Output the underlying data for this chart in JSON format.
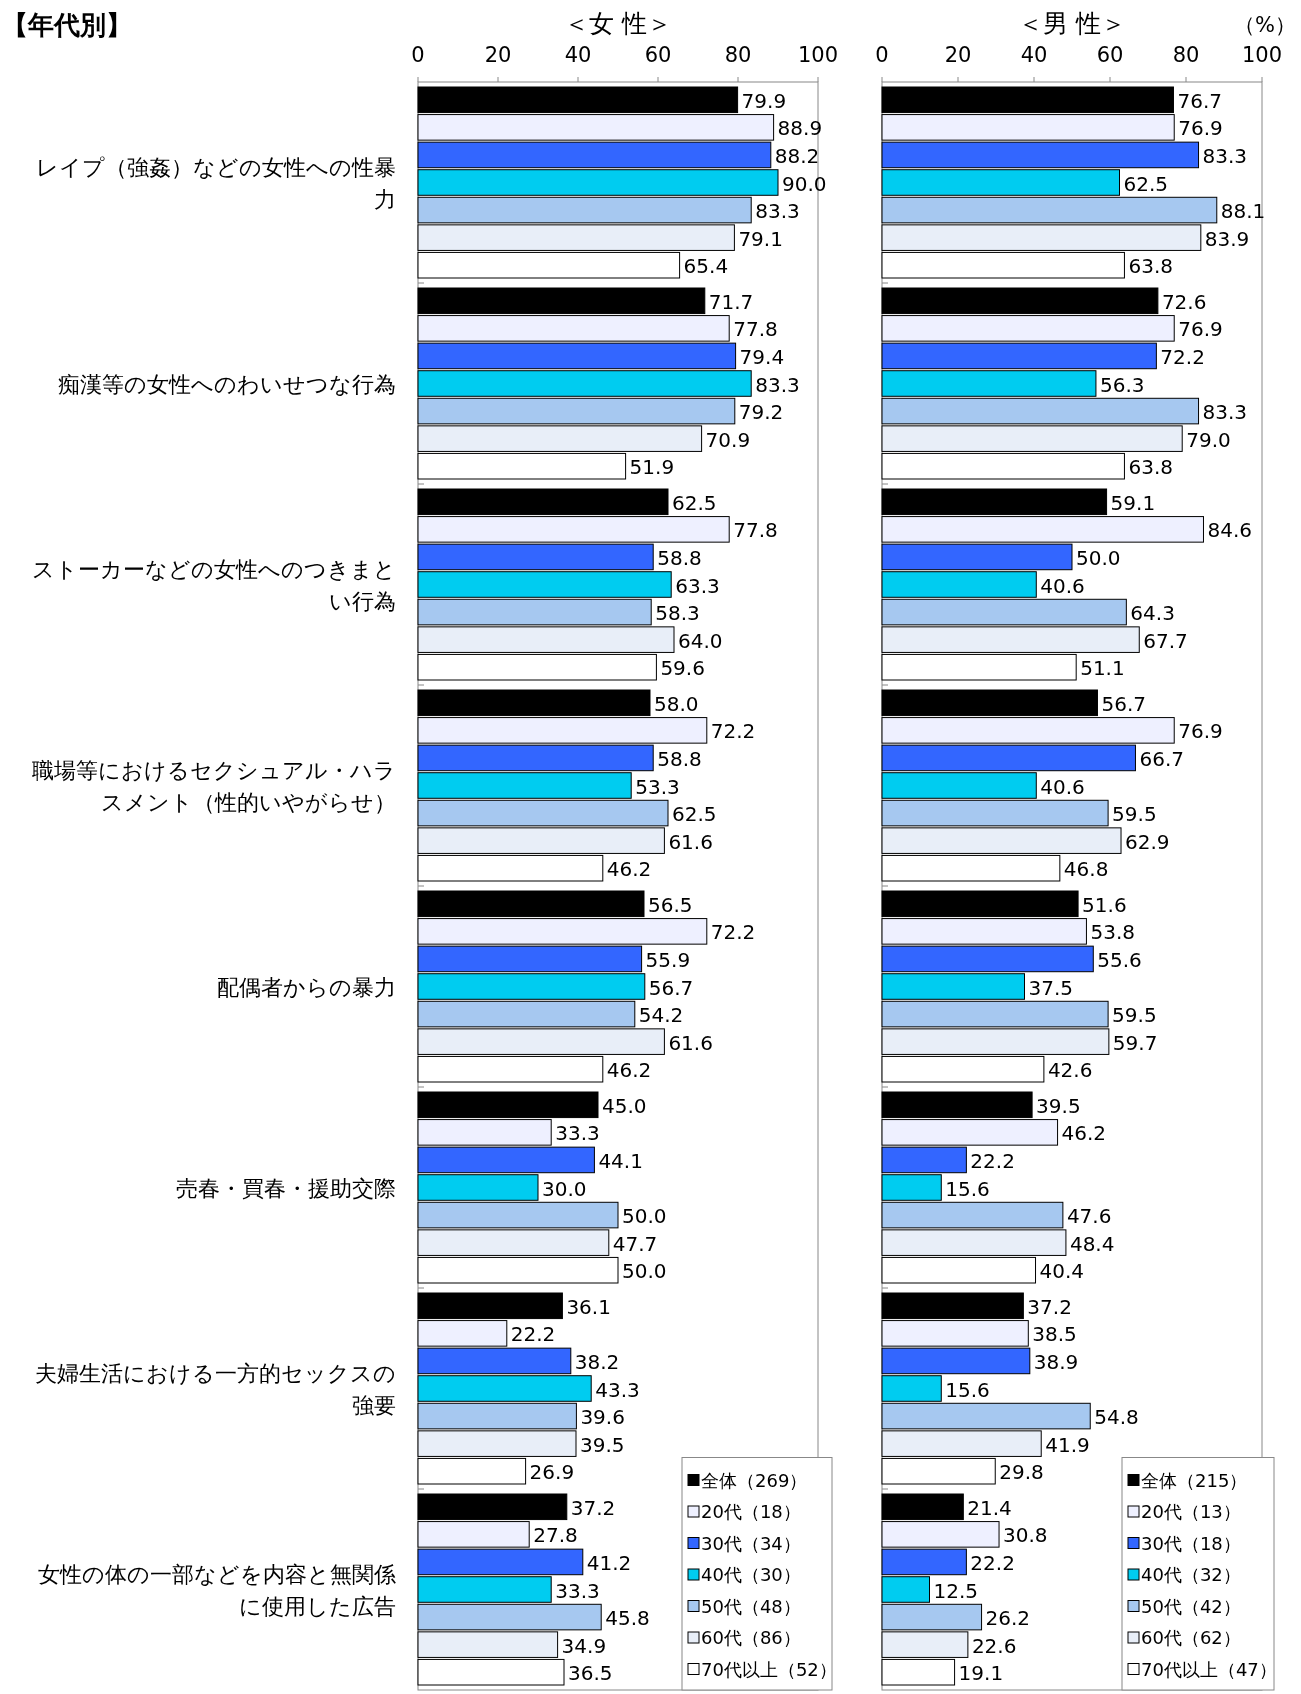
{
  "chart_data": [
    {
      "type": "bar",
      "orientation": "horizontal",
      "title": "【年代別】",
      "subtitle": "＜女 性＞",
      "xlim": [
        0,
        100
      ],
      "xticks": [
        0,
        20,
        40,
        60,
        80,
        100
      ],
      "legend": "bottom right",
      "grid": false,
      "categories": [
        "レイプ（強姦）などの女性への性暴力",
        "痴漢等の女性へのわいせつな行為",
        "ストーカーなどの女性へのつきまとい行為",
        "職場等におけるセクシュアル・ハラスメント（性的いやがらせ）",
        "配偶者からの暴力",
        "売春・買春・援助交際",
        "夫婦生活における一方的セックスの強要",
        "女性の体の一部などを内容と無関係に使用した広告"
      ],
      "series": [
        {
          "name": "全体（269）",
          "color": "#000000",
          "values": [
            79.9,
            71.7,
            62.5,
            58.0,
            56.5,
            45.0,
            36.1,
            37.2
          ],
          "value_labels": [
            "79.9",
            "71.7",
            "62.5",
            "58.0",
            "56.5",
            "45.0",
            "36.1",
            "37.2"
          ]
        },
        {
          "name": "20代（18）",
          "color": "#eef0ff",
          "values": [
            88.9,
            77.8,
            77.8,
            72.2,
            72.2,
            33.3,
            22.2,
            27.8
          ],
          "value_labels": [
            "88.9",
            "77.8",
            "77.8",
            "72.2",
            "72.2",
            "33.3",
            "22.2",
            "27.8"
          ]
        },
        {
          "name": "30代（34）",
          "color": "#3366ff",
          "values": [
            88.2,
            79.4,
            58.8,
            58.8,
            55.9,
            44.1,
            38.2,
            41.2
          ],
          "value_labels": [
            "88.2",
            "79.4",
            "58.8",
            "58.8",
            "55.9",
            "44.1",
            "38.2",
            "41.2"
          ]
        },
        {
          "name": "40代（30）",
          "color": "#00ccf0",
          "values": [
            90.0,
            83.3,
            63.3,
            53.3,
            56.7,
            30.0,
            43.3,
            33.3
          ],
          "value_labels": [
            "90.0",
            "83.3",
            "63.3",
            "53.3",
            "56.7",
            "30.0",
            "43.3",
            "33.3"
          ]
        },
        {
          "name": "50代（48）",
          "color": "#a6c8f0",
          "values": [
            83.3,
            79.2,
            58.3,
            62.5,
            54.2,
            50.0,
            39.6,
            45.8
          ],
          "value_labels": [
            "83.3",
            "79.2",
            "58.3",
            "62.5",
            "54.2",
            "50.0",
            "39.6",
            "45.8"
          ]
        },
        {
          "name": "60代（86）",
          "color": "#e8eef8",
          "values": [
            79.1,
            70.9,
            64.0,
            61.6,
            61.6,
            47.7,
            39.5,
            34.9
          ],
          "value_labels": [
            "79.1",
            "70.9",
            "64.0",
            "61.6",
            "61.6",
            "47.7",
            "39.5",
            "34.9"
          ]
        },
        {
          "name": "70代以上（52）",
          "color": "#ffffff",
          "values": [
            65.4,
            51.9,
            59.6,
            46.2,
            46.2,
            50.0,
            26.9,
            36.5
          ],
          "value_labels": [
            "65.4",
            "51.9",
            "59.6",
            "46.2",
            "46.2",
            "50.0",
            "26.9",
            "36.5"
          ]
        }
      ]
    },
    {
      "type": "bar",
      "orientation": "horizontal",
      "subtitle": "＜男 性＞",
      "annotations": [
        "（%）"
      ],
      "xlim": [
        0,
        100
      ],
      "xticks": [
        0,
        20,
        40,
        60,
        80,
        100
      ],
      "legend": "bottom right",
      "grid": false,
      "tick_labels": "x",
      "categories": [
        null,
        null,
        null,
        null,
        null,
        null,
        null,
        null
      ],
      "series": [
        {
          "name": "全体（215）",
          "color": "#000000",
          "values": [
            76.7,
            72.6,
            59.1,
            56.7,
            51.6,
            39.5,
            37.2,
            21.4
          ],
          "value_labels": [
            "76.7",
            "72.6",
            "59.1",
            "56.7",
            "51.6",
            "39.5",
            "37.2",
            "21.4"
          ]
        },
        {
          "name": "20代（13）",
          "color": "#eef0ff",
          "values": [
            76.9,
            76.9,
            84.6,
            76.9,
            53.8,
            46.2,
            38.5,
            30.8
          ],
          "value_labels": [
            "76.9",
            "76.9",
            "84.6",
            "76.9",
            "53.8",
            "46.2",
            "38.5",
            "30.8"
          ]
        },
        {
          "name": "30代（18）",
          "color": "#3366ff",
          "values": [
            83.3,
            72.2,
            50.0,
            66.7,
            55.6,
            22.2,
            38.9,
            22.2
          ],
          "value_labels": [
            "83.3",
            "72.2",
            "50.0",
            "66.7",
            "55.6",
            "22.2",
            "38.9",
            "22.2"
          ]
        },
        {
          "name": "40代（32）",
          "color": "#00ccf0",
          "values": [
            62.5,
            56.3,
            40.6,
            40.6,
            37.5,
            15.6,
            15.6,
            12.5
          ],
          "value_labels": [
            "62.5",
            "56.3",
            "40.6",
            "40.6",
            "37.5",
            "15.6",
            "15.6",
            "12.5"
          ]
        },
        {
          "name": "50代（42）",
          "color": "#a6c8f0",
          "values": [
            88.1,
            83.3,
            64.3,
            59.5,
            59.5,
            47.6,
            54.8,
            26.2
          ],
          "value_labels": [
            "88.1",
            "83.3",
            "64.3",
            "59.5",
            "59.5",
            "47.6",
            "54.8",
            "26.2"
          ]
        },
        {
          "name": "60代（62）",
          "color": "#e8eef8",
          "values": [
            83.9,
            79.0,
            67.7,
            62.9,
            59.7,
            48.4,
            41.9,
            22.6
          ],
          "value_labels": [
            "83.9",
            "79.0",
            "67.7",
            "62.9",
            "59.7",
            "48.4",
            "41.9",
            "22.6"
          ]
        },
        {
          "name": "70代以上（47）",
          "color": "#ffffff",
          "values": [
            63.8,
            63.8,
            51.1,
            46.8,
            42.6,
            40.4,
            29.8,
            19.1
          ],
          "value_labels": [
            "63.8",
            "63.8",
            "51.1",
            "46.8",
            "42.6",
            "40.4",
            "29.8",
            "19.1"
          ]
        }
      ]
    }
  ]
}
